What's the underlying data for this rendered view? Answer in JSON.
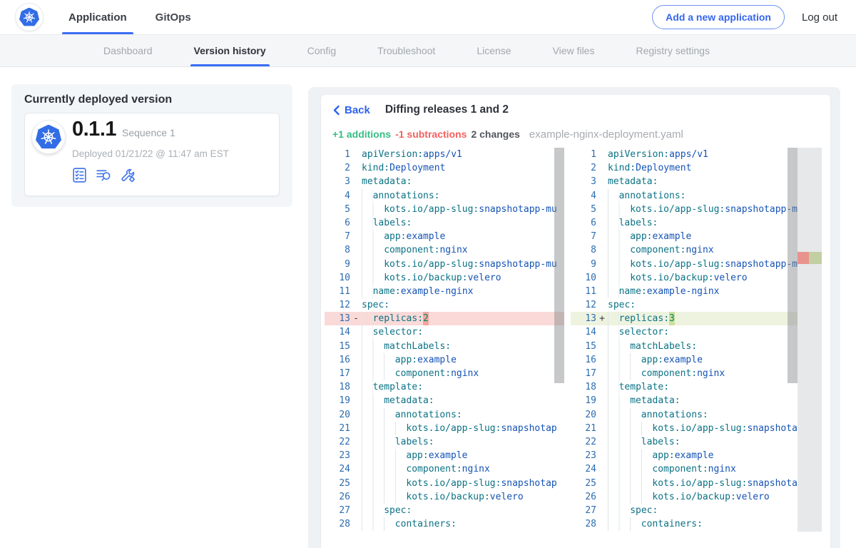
{
  "topnav": {
    "tabs": [
      {
        "label": "Application"
      },
      {
        "label": "GitOps"
      }
    ],
    "add_app_label": "Add a new application",
    "logout_label": "Log out"
  },
  "subnav": {
    "tabs": [
      {
        "label": "Dashboard"
      },
      {
        "label": "Version history"
      },
      {
        "label": "Config"
      },
      {
        "label": "Troubleshoot"
      },
      {
        "label": "License"
      },
      {
        "label": "View files"
      },
      {
        "label": "Registry settings"
      }
    ],
    "active": "Version history"
  },
  "deployed": {
    "title": "Currently deployed version",
    "version": "0.1.1",
    "sequence": "Sequence 1",
    "deployed_at": "Deployed 01/21/22 @ 11:47 am EST",
    "icons": [
      "preflight-checks-icon",
      "deploy-logs-icon",
      "config-tools-icon"
    ]
  },
  "diff": {
    "back_label": "Back",
    "title": "Diffing releases 1 and 2",
    "stats": {
      "additions": "+1 additions",
      "subtractions": "-1 subtractions",
      "changes": "2 changes",
      "filename": "example-nginx-deployment.yaml"
    },
    "colors": {
      "accent_blue": "#3b6ef5",
      "addition_green": "#35bd85",
      "subtraction_red": "#f4615e",
      "removed_line_bg": "#fadad8",
      "removed_char_bg": "#f2a6a0",
      "added_line_bg": "#eef3e0",
      "added_char_bg": "#cde09f"
    },
    "panels": {
      "left": {
        "lines": [
          {
            "n": 1,
            "indent": 0,
            "key": "apiVersion:",
            "value": "apps/v1"
          },
          {
            "n": 2,
            "indent": 0,
            "key": "kind:",
            "value": "Deployment"
          },
          {
            "n": 3,
            "indent": 0,
            "key": "metadata:",
            "value": ""
          },
          {
            "n": 4,
            "indent": 2,
            "key": "annotations:",
            "value": ""
          },
          {
            "n": 5,
            "indent": 4,
            "key": "kots.io/app-slug:",
            "value": "snapshotapp-mu"
          },
          {
            "n": 6,
            "indent": 2,
            "key": "labels:",
            "value": ""
          },
          {
            "n": 7,
            "indent": 4,
            "key": "app:",
            "value": "example"
          },
          {
            "n": 8,
            "indent": 4,
            "key": "component:",
            "value": "nginx"
          },
          {
            "n": 9,
            "indent": 4,
            "key": "kots.io/app-slug:",
            "value": "snapshotapp-mu"
          },
          {
            "n": 10,
            "indent": 4,
            "key": "kots.io/backup:",
            "value": "velero"
          },
          {
            "n": 11,
            "indent": 2,
            "key": "name:",
            "value": "example-nginx"
          },
          {
            "n": 12,
            "indent": 0,
            "key": "spec:",
            "value": ""
          },
          {
            "n": 13,
            "indent": 2,
            "key": "replicas:",
            "value": "2",
            "vtype": "num",
            "diff": "removed"
          },
          {
            "n": 14,
            "indent": 2,
            "key": "selector:",
            "value": ""
          },
          {
            "n": 15,
            "indent": 4,
            "key": "matchLabels:",
            "value": ""
          },
          {
            "n": 16,
            "indent": 6,
            "key": "app:",
            "value": "example"
          },
          {
            "n": 17,
            "indent": 6,
            "key": "component:",
            "value": "nginx"
          },
          {
            "n": 18,
            "indent": 2,
            "key": "template:",
            "value": ""
          },
          {
            "n": 19,
            "indent": 4,
            "key": "metadata:",
            "value": ""
          },
          {
            "n": 20,
            "indent": 6,
            "key": "annotations:",
            "value": ""
          },
          {
            "n": 21,
            "indent": 8,
            "key": "kots.io/app-slug:",
            "value": "snapshotap"
          },
          {
            "n": 22,
            "indent": 6,
            "key": "labels:",
            "value": ""
          },
          {
            "n": 23,
            "indent": 8,
            "key": "app:",
            "value": "example"
          },
          {
            "n": 24,
            "indent": 8,
            "key": "component:",
            "value": "nginx"
          },
          {
            "n": 25,
            "indent": 8,
            "key": "kots.io/app-slug:",
            "value": "snapshotap"
          },
          {
            "n": 26,
            "indent": 8,
            "key": "kots.io/backup:",
            "value": "velero"
          },
          {
            "n": 27,
            "indent": 4,
            "key": "spec:",
            "value": ""
          },
          {
            "n": 28,
            "indent": 6,
            "key": "containers:",
            "value": ""
          }
        ]
      },
      "right": {
        "lines": [
          {
            "n": 1,
            "indent": 0,
            "key": "apiVersion:",
            "value": "apps/v1"
          },
          {
            "n": 2,
            "indent": 0,
            "key": "kind:",
            "value": "Deployment"
          },
          {
            "n": 3,
            "indent": 0,
            "key": "metadata:",
            "value": ""
          },
          {
            "n": 4,
            "indent": 2,
            "key": "annotations:",
            "value": ""
          },
          {
            "n": 5,
            "indent": 4,
            "key": "kots.io/app-slug:",
            "value": "snapshotapp-mu"
          },
          {
            "n": 6,
            "indent": 2,
            "key": "labels:",
            "value": ""
          },
          {
            "n": 7,
            "indent": 4,
            "key": "app:",
            "value": "example"
          },
          {
            "n": 8,
            "indent": 4,
            "key": "component:",
            "value": "nginx"
          },
          {
            "n": 9,
            "indent": 4,
            "key": "kots.io/app-slug:",
            "value": "snapshotapp-mu"
          },
          {
            "n": 10,
            "indent": 4,
            "key": "kots.io/backup:",
            "value": "velero"
          },
          {
            "n": 11,
            "indent": 2,
            "key": "name:",
            "value": "example-nginx"
          },
          {
            "n": 12,
            "indent": 0,
            "key": "spec:",
            "value": ""
          },
          {
            "n": 13,
            "indent": 2,
            "key": "replicas:",
            "value": "3",
            "vtype": "num",
            "diff": "added"
          },
          {
            "n": 14,
            "indent": 2,
            "key": "selector:",
            "value": ""
          },
          {
            "n": 15,
            "indent": 4,
            "key": "matchLabels:",
            "value": ""
          },
          {
            "n": 16,
            "indent": 6,
            "key": "app:",
            "value": "example"
          },
          {
            "n": 17,
            "indent": 6,
            "key": "component:",
            "value": "nginx"
          },
          {
            "n": 18,
            "indent": 2,
            "key": "template:",
            "value": ""
          },
          {
            "n": 19,
            "indent": 4,
            "key": "metadata:",
            "value": ""
          },
          {
            "n": 20,
            "indent": 6,
            "key": "annotations:",
            "value": ""
          },
          {
            "n": 21,
            "indent": 8,
            "key": "kots.io/app-slug:",
            "value": "snapshotap"
          },
          {
            "n": 22,
            "indent": 6,
            "key": "labels:",
            "value": ""
          },
          {
            "n": 23,
            "indent": 8,
            "key": "app:",
            "value": "example"
          },
          {
            "n": 24,
            "indent": 8,
            "key": "component:",
            "value": "nginx"
          },
          {
            "n": 25,
            "indent": 8,
            "key": "kots.io/app-slug:",
            "value": "snapshotap"
          },
          {
            "n": 26,
            "indent": 8,
            "key": "kots.io/backup:",
            "value": "velero"
          },
          {
            "n": 27,
            "indent": 4,
            "key": "spec:",
            "value": ""
          },
          {
            "n": 28,
            "indent": 6,
            "key": "containers:",
            "value": ""
          }
        ]
      }
    }
  }
}
